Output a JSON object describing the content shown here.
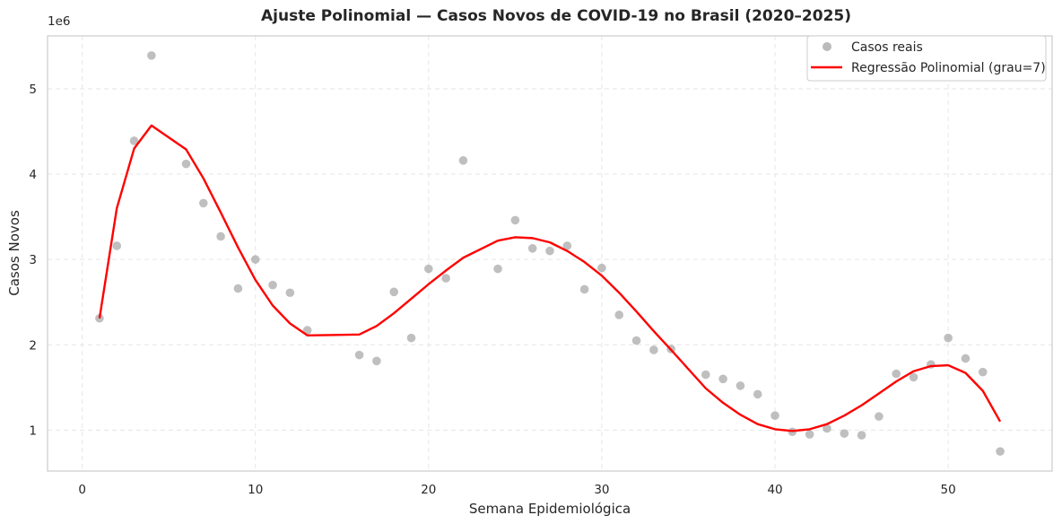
{
  "chart_data": {
    "type": "scatter",
    "title": "Ajuste Polinomial — Casos Novos de COVID-19 no Brasil (2020–2025)",
    "xlabel": "Semana Epidemiológica",
    "ylabel": "Casos Novos",
    "y_offset_label": "1e6",
    "xlim": [
      -2,
      56
    ],
    "ylim": [
      520000,
      5620000
    ],
    "x_ticks": [
      0,
      10,
      20,
      30,
      40,
      50
    ],
    "y_ticks": [
      1000000,
      2000000,
      3000000,
      4000000,
      5000000
    ],
    "x_tick_labels": [
      "0",
      "10",
      "20",
      "30",
      "40",
      "50"
    ],
    "y_tick_labels": [
      "1",
      "2",
      "3",
      "4",
      "5"
    ],
    "grid": true,
    "legend_position": "top-right",
    "colors": {
      "points": "#a9a9a9",
      "line": "#ff0000",
      "grid": "#e6e6e6",
      "frame": "#cccccc"
    },
    "series": [
      {
        "name": "Casos reais",
        "kind": "scatter",
        "x": [
          1,
          2,
          3,
          4,
          6,
          7,
          8,
          9,
          10,
          11,
          12,
          13,
          16,
          17,
          18,
          19,
          20,
          21,
          22,
          24,
          25,
          26,
          27,
          28,
          29,
          30,
          31,
          32,
          33,
          34,
          36,
          37,
          38,
          39,
          40,
          41,
          42,
          43,
          44,
          45,
          46,
          47,
          48,
          49,
          50,
          51,
          52,
          53
        ],
        "y": [
          2310000,
          3160000,
          4390000,
          5390000,
          4120000,
          3660000,
          3270000,
          2660000,
          3000000,
          2700000,
          2610000,
          2170000,
          1880000,
          1810000,
          2620000,
          2080000,
          2890000,
          2780000,
          4160000,
          2890000,
          3460000,
          3130000,
          3100000,
          3160000,
          2650000,
          2900000,
          2350000,
          2050000,
          1940000,
          1950000,
          1650000,
          1600000,
          1520000,
          1420000,
          1170000,
          980000,
          950000,
          1020000,
          960000,
          940000,
          1160000,
          1660000,
          1620000,
          1770000,
          2080000,
          1840000,
          1680000,
          750000
        ]
      },
      {
        "name": "Regressão Polinomial (grau=7)",
        "kind": "line",
        "x": [
          1,
          2,
          3,
          4,
          6,
          7,
          8,
          9,
          10,
          11,
          12,
          13,
          16,
          17,
          18,
          19,
          20,
          21,
          22,
          24,
          25,
          26,
          27,
          28,
          29,
          30,
          31,
          32,
          33,
          34,
          36,
          37,
          38,
          39,
          40,
          41,
          42,
          43,
          44,
          45,
          46,
          47,
          48,
          49,
          50,
          51,
          52,
          53
        ],
        "y": [
          2310000,
          3600000,
          4300000,
          4570000,
          4290000,
          3950000,
          3550000,
          3140000,
          2760000,
          2460000,
          2250000,
          2110000,
          2120000,
          2220000,
          2370000,
          2540000,
          2710000,
          2870000,
          3020000,
          3220000,
          3260000,
          3250000,
          3200000,
          3100000,
          2970000,
          2810000,
          2610000,
          2390000,
          2160000,
          1940000,
          1490000,
          1320000,
          1180000,
          1070000,
          1010000,
          990000,
          1010000,
          1070000,
          1170000,
          1290000,
          1430000,
          1570000,
          1690000,
          1750000,
          1760000,
          1670000,
          1460000,
          1100000
        ]
      }
    ]
  }
}
